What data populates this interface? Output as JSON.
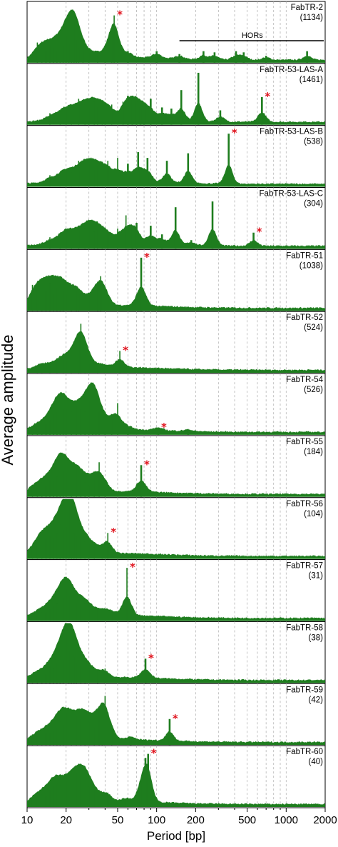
{
  "figure": {
    "ylabel": "Average amplitude",
    "xlabel": "Period [bp]",
    "hor_label": "HORs",
    "colors": {
      "bars": "#1e7d1e",
      "star": "#e0141e",
      "grid": "#b4b4b4",
      "axis": "#000000"
    }
  },
  "chart_data": {
    "type": "bar",
    "x_scale": "log",
    "xlim": [
      10,
      2000
    ],
    "x_ticks": [
      {
        "value": 10,
        "label": "10"
      },
      {
        "value": 20,
        "label": "20"
      },
      {
        "value": 50,
        "label": "50"
      },
      {
        "value": 100,
        "label": "100"
      },
      {
        "value": 200,
        "label": "200"
      },
      {
        "value": 500,
        "label": "500"
      },
      {
        "value": 1000,
        "label": "1000"
      },
      {
        "value": 2000,
        "label": "2000"
      }
    ],
    "grid": "vertical dashed at 20, 30, 40, 50, 60, 70, 80, 90, 100, 200, 300, 400, 500, 600, 700, 800, 900, 1000",
    "panels": [
      {
        "name": "FabTR-2",
        "count": "(1134)",
        "marked_period": 47,
        "peaks": [
          [
            12,
            0.35
          ],
          [
            13,
            0.25
          ],
          [
            14,
            0.2
          ],
          [
            15,
            0.3
          ],
          [
            16,
            0.25
          ],
          [
            17,
            0.2
          ],
          [
            18,
            0.28
          ],
          [
            19,
            0.3
          ],
          [
            20,
            0.45
          ],
          [
            21,
            0.32
          ],
          [
            22,
            0.55
          ],
          [
            23,
            0.72
          ],
          [
            24,
            0.4
          ],
          [
            25,
            0.25
          ],
          [
            27,
            0.2
          ],
          [
            30,
            0.18
          ],
          [
            35,
            0.15
          ],
          [
            40,
            0.2
          ],
          [
            45,
            0.6
          ],
          [
            47,
            0.82
          ],
          [
            50,
            0.35
          ],
          [
            60,
            0.2
          ],
          [
            100,
            0.2
          ],
          [
            150,
            0.15
          ],
          [
            230,
            0.2
          ],
          [
            280,
            0.18
          ],
          [
            410,
            0.2
          ],
          [
            470,
            0.18
          ],
          [
            700,
            0.12
          ],
          [
            1450,
            0.2
          ]
        ],
        "hor_range": [
          150,
          2000
        ]
      },
      {
        "name": "FabTR-53-LAS-A",
        "count": "(1461)",
        "marked_period": 650,
        "peaks": [
          [
            15,
            0.2
          ],
          [
            18,
            0.25
          ],
          [
            20,
            0.3
          ],
          [
            22,
            0.28
          ],
          [
            25,
            0.45
          ],
          [
            28,
            0.35
          ],
          [
            30,
            0.3
          ],
          [
            33,
            0.4
          ],
          [
            35,
            0.3
          ],
          [
            38,
            0.25
          ],
          [
            40,
            0.3
          ],
          [
            45,
            0.35
          ],
          [
            55,
            0.4
          ],
          [
            60,
            0.5
          ],
          [
            65,
            0.45
          ],
          [
            70,
            0.4
          ],
          [
            75,
            0.3
          ],
          [
            80,
            0.35
          ],
          [
            90,
            0.45
          ],
          [
            110,
            0.3
          ],
          [
            130,
            0.28
          ],
          [
            155,
            0.6
          ],
          [
            210,
            0.9
          ],
          [
            310,
            0.25
          ],
          [
            650,
            0.48
          ]
        ]
      },
      {
        "name": "FabTR-53-LAS-B",
        "count": "(538)",
        "marked_period": 360,
        "peaks": [
          [
            15,
            0.2
          ],
          [
            18,
            0.25
          ],
          [
            20,
            0.3
          ],
          [
            22,
            0.25
          ],
          [
            25,
            0.45
          ],
          [
            28,
            0.4
          ],
          [
            30,
            0.4
          ],
          [
            33,
            0.3
          ],
          [
            35,
            0.35
          ],
          [
            38,
            0.3
          ],
          [
            42,
            0.45
          ],
          [
            50,
            0.5
          ],
          [
            60,
            0.4
          ],
          [
            72,
            0.6
          ],
          [
            85,
            0.5
          ],
          [
            120,
            0.45
          ],
          [
            175,
            0.58
          ],
          [
            360,
            0.92
          ]
        ]
      },
      {
        "name": "FabTR-53-LAS-C",
        "count": "(304)",
        "marked_period": 560,
        "peaks": [
          [
            15,
            0.2
          ],
          [
            18,
            0.25
          ],
          [
            20,
            0.35
          ],
          [
            22,
            0.3
          ],
          [
            25,
            0.4
          ],
          [
            28,
            0.35
          ],
          [
            30,
            0.45
          ],
          [
            33,
            0.3
          ],
          [
            35,
            0.35
          ],
          [
            38,
            0.3
          ],
          [
            42,
            0.3
          ],
          [
            50,
            0.35
          ],
          [
            58,
            0.58
          ],
          [
            65,
            0.4
          ],
          [
            70,
            0.45
          ],
          [
            90,
            0.4
          ],
          [
            110,
            0.25
          ],
          [
            140,
            0.72
          ],
          [
            185,
            0.15
          ],
          [
            270,
            0.82
          ],
          [
            560,
            0.28
          ]
        ]
      },
      {
        "name": "FabTR-51",
        "count": "(1038)",
        "marked_period": 76,
        "peaks": [
          [
            11,
            0.45
          ],
          [
            12,
            0.4
          ],
          [
            13,
            0.5
          ],
          [
            14,
            0.35
          ],
          [
            15,
            0.48
          ],
          [
            16,
            0.3
          ],
          [
            17,
            0.4
          ],
          [
            18,
            0.3
          ],
          [
            19,
            0.35
          ],
          [
            20,
            0.3
          ],
          [
            22,
            0.3
          ],
          [
            24,
            0.35
          ],
          [
            25,
            0.3
          ],
          [
            30,
            0.3
          ],
          [
            35,
            0.45
          ],
          [
            37,
            0.6
          ],
          [
            40,
            0.3
          ],
          [
            76,
            0.92
          ]
        ]
      },
      {
        "name": "FabTR-52",
        "count": "(524)",
        "marked_period": 52,
        "peaks": [
          [
            12,
            0.1
          ],
          [
            13,
            0.12
          ],
          [
            15,
            0.15
          ],
          [
            17,
            0.2
          ],
          [
            19,
            0.25
          ],
          [
            20,
            0.2
          ],
          [
            22,
            0.3
          ],
          [
            25,
            0.62
          ],
          [
            26,
            0.85
          ],
          [
            28,
            0.3
          ],
          [
            30,
            0.15
          ],
          [
            35,
            0.1
          ],
          [
            40,
            0.1
          ],
          [
            52,
            0.38
          ]
        ]
      },
      {
        "name": "FabTR-54",
        "count": "(526)",
        "marked_period": 103,
        "peaks": [
          [
            11,
            0.15
          ],
          [
            12,
            0.12
          ],
          [
            13,
            0.15
          ],
          [
            14,
            0.2
          ],
          [
            15,
            0.25
          ],
          [
            16,
            0.35
          ],
          [
            17,
            0.4
          ],
          [
            18,
            0.55
          ],
          [
            19,
            0.45
          ],
          [
            20,
            0.45
          ],
          [
            22,
            0.4
          ],
          [
            24,
            0.5
          ],
          [
            26,
            0.45
          ],
          [
            28,
            0.4
          ],
          [
            30,
            0.6
          ],
          [
            32,
            0.85
          ],
          [
            34,
            0.6
          ],
          [
            36,
            0.4
          ],
          [
            40,
            0.2
          ],
          [
            45,
            0.35
          ],
          [
            50,
            0.55
          ],
          [
            60,
            0.15
          ],
          [
            103,
            0.12
          ],
          [
            175,
            0.08
          ]
        ]
      },
      {
        "name": "FabTR-55",
        "count": "(184)",
        "marked_period": 76,
        "peaks": [
          [
            11,
            0.2
          ],
          [
            12,
            0.18
          ],
          [
            13,
            0.25
          ],
          [
            14,
            0.2
          ],
          [
            15,
            0.3
          ],
          [
            16,
            0.28
          ],
          [
            17,
            0.35
          ],
          [
            18,
            0.7
          ],
          [
            19,
            0.45
          ],
          [
            20,
            0.4
          ],
          [
            22,
            0.5
          ],
          [
            24,
            0.55
          ],
          [
            26,
            0.3
          ],
          [
            28,
            0.25
          ],
          [
            30,
            0.2
          ],
          [
            33,
            0.3
          ],
          [
            36,
            0.6
          ],
          [
            40,
            0.2
          ],
          [
            76,
            0.55
          ]
        ]
      },
      {
        "name": "FabTR-56",
        "count": "(104)",
        "marked_period": 42,
        "peaks": [
          [
            11,
            0.2
          ],
          [
            12,
            0.3
          ],
          [
            13,
            0.45
          ],
          [
            14,
            0.35
          ],
          [
            15,
            0.4
          ],
          [
            16,
            0.35
          ],
          [
            17,
            0.45
          ],
          [
            18,
            0.6
          ],
          [
            19,
            0.5
          ],
          [
            20,
            0.55
          ],
          [
            21,
            0.92
          ],
          [
            22,
            0.7
          ],
          [
            23,
            0.45
          ],
          [
            24,
            0.4
          ],
          [
            26,
            0.35
          ],
          [
            28,
            0.3
          ],
          [
            30,
            0.25
          ],
          [
            33,
            0.2
          ],
          [
            38,
            0.15
          ],
          [
            42,
            0.45
          ]
        ]
      },
      {
        "name": "FabTR-57",
        "count": "(31)",
        "marked_period": 59,
        "peaks": [
          [
            11,
            0.1
          ],
          [
            12,
            0.12
          ],
          [
            13,
            0.15
          ],
          [
            14,
            0.15
          ],
          [
            15,
            0.2
          ],
          [
            16,
            0.25
          ],
          [
            17,
            0.3
          ],
          [
            18,
            0.35
          ],
          [
            19,
            0.4
          ],
          [
            20,
            0.55
          ],
          [
            21,
            0.45
          ],
          [
            22,
            0.35
          ],
          [
            24,
            0.3
          ],
          [
            26,
            0.3
          ],
          [
            28,
            0.3
          ],
          [
            30,
            0.25
          ],
          [
            35,
            0.2
          ],
          [
            40,
            0.2
          ],
          [
            45,
            0.15
          ],
          [
            59,
            0.92
          ]
        ]
      },
      {
        "name": "FabTR-58",
        "count": "(38)",
        "marked_period": 82,
        "peaks": [
          [
            11,
            0.15
          ],
          [
            12,
            0.12
          ],
          [
            13,
            0.15
          ],
          [
            14,
            0.15
          ],
          [
            15,
            0.3
          ],
          [
            16,
            0.25
          ],
          [
            17,
            0.35
          ],
          [
            18,
            0.45
          ],
          [
            19,
            0.4
          ],
          [
            20,
            0.85
          ],
          [
            21,
            0.55
          ],
          [
            22,
            0.65
          ],
          [
            23,
            0.45
          ],
          [
            24,
            0.35
          ],
          [
            26,
            0.3
          ],
          [
            28,
            0.35
          ],
          [
            30,
            0.25
          ],
          [
            35,
            0.2
          ],
          [
            40,
            0.25
          ],
          [
            82,
            0.42
          ]
        ]
      },
      {
        "name": "FabTR-59",
        "count": "(42)",
        "marked_period": 126,
        "peaks": [
          [
            11,
            0.15
          ],
          [
            12,
            0.15
          ],
          [
            13,
            0.2
          ],
          [
            14,
            0.2
          ],
          [
            15,
            0.2
          ],
          [
            16,
            0.25
          ],
          [
            17,
            0.3
          ],
          [
            18,
            0.4
          ],
          [
            19,
            0.35
          ],
          [
            20,
            0.55
          ],
          [
            22,
            0.45
          ],
          [
            24,
            0.5
          ],
          [
            26,
            0.45
          ],
          [
            28,
            0.5
          ],
          [
            30,
            0.4
          ],
          [
            33,
            0.3
          ],
          [
            36,
            0.65
          ],
          [
            38,
            0.35
          ],
          [
            40,
            0.85
          ],
          [
            45,
            0.3
          ],
          [
            63,
            0.12
          ],
          [
            126,
            0.45
          ]
        ]
      },
      {
        "name": "FabTR-60",
        "count": "(40)",
        "marked_period": 86,
        "peaks": [
          [
            11,
            0.15
          ],
          [
            12,
            0.18
          ],
          [
            13,
            0.22
          ],
          [
            14,
            0.2
          ],
          [
            15,
            0.3
          ],
          [
            16,
            0.35
          ],
          [
            17,
            0.4
          ],
          [
            18,
            0.38
          ],
          [
            20,
            0.45
          ],
          [
            22,
            0.65
          ],
          [
            24,
            0.58
          ],
          [
            26,
            0.55
          ],
          [
            28,
            0.7
          ],
          [
            30,
            0.35
          ],
          [
            33,
            0.3
          ],
          [
            38,
            0.2
          ],
          [
            42,
            0.25
          ],
          [
            58,
            0.15
          ],
          [
            75,
            0.45
          ],
          [
            82,
            0.85
          ],
          [
            86,
            0.92
          ]
        ]
      }
    ]
  }
}
